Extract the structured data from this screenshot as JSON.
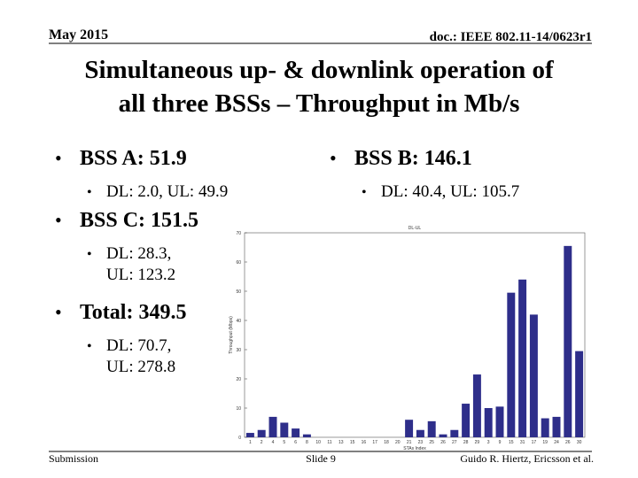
{
  "header": {
    "date": "May 2015",
    "doc": "doc.: IEEE 802.11-14/0623r1"
  },
  "title": [
    "Simultaneous up- & downlink operation of",
    "all three BSSs – Throughput in Mb/s"
  ],
  "bullets": [
    {
      "text": "BSS A: 51.9",
      "sub": [
        "DL: 2.0, UL: 49.9"
      ]
    },
    {
      "text": "BSS B: 146.1",
      "sub": [
        "DL: 40.4, UL: 105.7"
      ]
    },
    {
      "text": "BSS C: 151.5",
      "sub": [
        "DL: 28.3,",
        "UL: 123.2"
      ]
    },
    {
      "text": "Total: 349.5",
      "sub": [
        "DL: 70.7,",
        "UL: 278.8"
      ]
    }
  ],
  "chart_data": {
    "type": "bar",
    "title": "DL-UL",
    "x_label": "STAs Index",
    "y_label": "Throughput (Mbps)",
    "categories": [
      "1",
      "2",
      "4",
      "5",
      "6",
      "8",
      "10",
      "11",
      "13",
      "15",
      "16",
      "17",
      "18",
      "20",
      "21",
      "23",
      "25",
      "26",
      "27",
      "28",
      "29",
      "3",
      "9",
      "15",
      "31",
      "17",
      "19",
      "24",
      "26",
      "30"
    ],
    "values": [
      1.5,
      2.5,
      7,
      5,
      3,
      1,
      0,
      0,
      0,
      0,
      0,
      0,
      0,
      0,
      6,
      2.5,
      5.5,
      1,
      2.5,
      11.5,
      21.5,
      10,
      10.5,
      49.5,
      54,
      42,
      6.5,
      7,
      65.5,
      29.5
    ],
    "color": "#2e2e8a",
    "ylim": [
      0,
      70
    ],
    "yticks": [
      0,
      10,
      20,
      30,
      40,
      50,
      60,
      70
    ]
  },
  "footer": {
    "left": "Submission",
    "center": "Slide 9",
    "right": "Guido R. Hiertz, Ericsson et al."
  }
}
